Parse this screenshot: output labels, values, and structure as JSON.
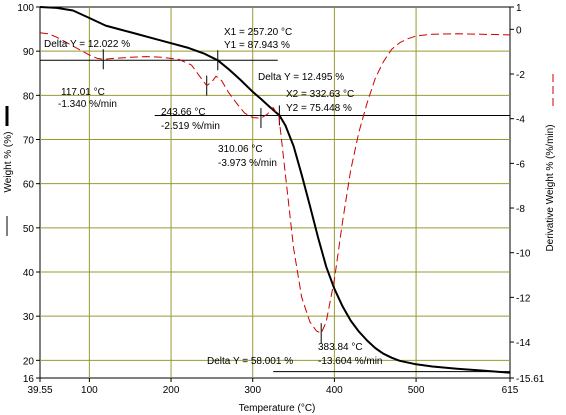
{
  "chart_data": {
    "type": "line",
    "xlabel": "Temperature (°C)",
    "ylabel_left": "Weight % (%)",
    "ylabel_right": "Derivative Weight % (%/min)",
    "xlim": [
      39.55,
      615
    ],
    "ylim_left": [
      16,
      100
    ],
    "ylim_right": [
      -15.61,
      1
    ],
    "x_ticks": [
      {
        "value": 39.55,
        "label": "39.55"
      },
      {
        "value": 100,
        "label": "100"
      },
      {
        "value": 200,
        "label": "200"
      },
      {
        "value": 300,
        "label": "300"
      },
      {
        "value": 400,
        "label": "400"
      },
      {
        "value": 500,
        "label": "500"
      },
      {
        "value": 615,
        "label": "615"
      }
    ],
    "y_left_ticks": [
      {
        "value": 16,
        "label": "16"
      },
      {
        "value": 20,
        "label": "20"
      },
      {
        "value": 30,
        "label": "30"
      },
      {
        "value": 40,
        "label": "40"
      },
      {
        "value": 50,
        "label": "50"
      },
      {
        "value": 60,
        "label": "60"
      },
      {
        "value": 70,
        "label": "70"
      },
      {
        "value": 80,
        "label": "80"
      },
      {
        "value": 90,
        "label": "90"
      },
      {
        "value": 100,
        "label": "100"
      }
    ],
    "y_right_ticks": [
      {
        "value": 1,
        "label": "1"
      },
      {
        "value": 0,
        "label": "0"
      },
      {
        "value": -2,
        "label": "-2"
      },
      {
        "value": -4,
        "label": "-4"
      },
      {
        "value": -6,
        "label": "-6"
      },
      {
        "value": -8,
        "label": "-8"
      },
      {
        "value": -10,
        "label": "-10"
      },
      {
        "value": -12,
        "label": "-12"
      },
      {
        "value": -14,
        "label": "-14"
      },
      {
        "value": -15.61,
        "label": "-15.61"
      }
    ],
    "grid": true,
    "series": [
      {
        "axis": "left",
        "color": "#000000",
        "style": "solid",
        "x": [
          39.55,
          60,
          80,
          100,
          120,
          140,
          160,
          180,
          200,
          220,
          240,
          257.2,
          270,
          285,
          300,
          310,
          320,
          332.63,
          340,
          350,
          360,
          370,
          380,
          390,
          400,
          410,
          420,
          430,
          440,
          450,
          460,
          470,
          480,
          500,
          520,
          550,
          580,
          615
        ],
        "y": [
          100,
          99.8,
          99.2,
          97.5,
          95.8,
          94.8,
          93.8,
          92.8,
          91.8,
          90.8,
          89.5,
          87.943,
          86,
          83.5,
          80.8,
          79.2,
          77.5,
          75.448,
          73.2,
          68.5,
          62,
          55,
          47.8,
          41.2,
          36.2,
          32.2,
          29,
          26.5,
          24.5,
          22.8,
          21.5,
          20.6,
          19.9,
          19.1,
          18.6,
          18.1,
          17.7,
          17.2
        ]
      },
      {
        "axis": "right",
        "color": "#cc0000",
        "style": "dashed",
        "x": [
          39.55,
          50,
          60,
          70,
          80,
          90,
          100,
          110,
          117.01,
          130,
          150,
          170,
          190,
          210,
          225,
          235,
          243.66,
          250,
          255,
          262,
          270,
          280,
          290,
          300,
          310.06,
          318,
          325,
          332,
          340,
          350,
          360,
          370,
          378,
          383.84,
          390,
          400,
          410,
          420,
          430,
          440,
          450,
          460,
          470,
          480,
          490,
          500,
          520,
          550,
          580,
          615
        ],
        "y": [
          -0.15,
          -0.2,
          -0.35,
          -0.55,
          -0.75,
          -0.95,
          -1.15,
          -1.3,
          -1.34,
          -1.3,
          -1.25,
          -1.22,
          -1.25,
          -1.35,
          -1.6,
          -2.1,
          -2.519,
          -2.35,
          -2.1,
          -2.3,
          -2.8,
          -3.3,
          -3.75,
          -3.95,
          -3.973,
          -3.8,
          -3.5,
          -3.9,
          -6.5,
          -9.8,
          -12,
          -13.1,
          -13.5,
          -13.604,
          -13.1,
          -11.2,
          -8.6,
          -6.3,
          -4.6,
          -3.3,
          -2.2,
          -1.45,
          -0.9,
          -0.6,
          -0.42,
          -0.3,
          -0.22,
          -0.2,
          -0.22,
          -0.25
        ]
      }
    ],
    "annotations": {
      "delta_y1": "Delta Y = 12.022 %",
      "peak1_t": "117.01 °C",
      "peak1_r": "-1.340 %/min",
      "x1": "X1 = 257.20 °C",
      "y1": "Y1 = 87.943 %",
      "delta_y2": "Delta Y = 12.495 %",
      "peak2_t": "243.66 °C",
      "peak2_r": "-2.519 %/min",
      "x2": "X2 = 332.63 °C",
      "y2": "Y2 = 75.448 %",
      "peak3_t": "310.06 °C",
      "peak3_r": "-3.973 %/min",
      "peak4_t": "383.84 °C",
      "peak4_r": "-13.604 %/min",
      "delta_y3": "Delta Y = 58.001 %"
    }
  }
}
